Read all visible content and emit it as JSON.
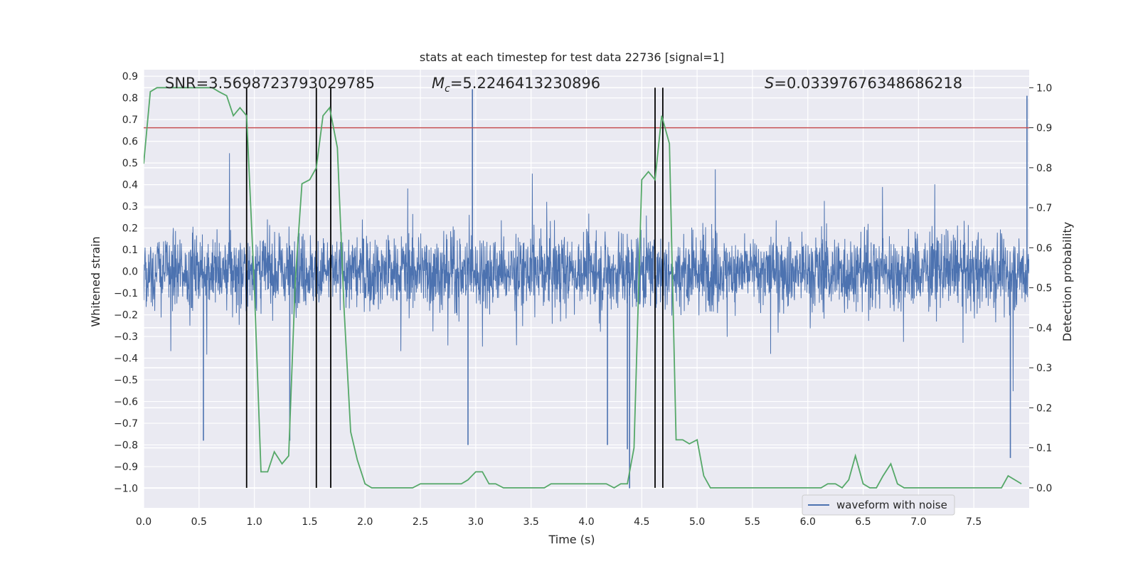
{
  "chart_data": {
    "type": "line",
    "title": "stats at each timestep for test data 22736 [signal=1]",
    "xlabel": "Time (s)",
    "ylabel": "Whitened strain",
    "y2label": "Detection probability",
    "xlim": [
      0.0,
      8.0
    ],
    "ylim": [
      -1.09,
      0.93
    ],
    "y2lim": [
      -0.05,
      1.045
    ],
    "xticks": [
      "0.0",
      "0.5",
      "1.0",
      "1.5",
      "2.0",
      "2.5",
      "3.0",
      "3.5",
      "4.0",
      "4.5",
      "5.0",
      "5.5",
      "6.0",
      "6.5",
      "7.0",
      "7.5"
    ],
    "yticks": [
      "0.9",
      "0.8",
      "0.7",
      "0.6",
      "0.5",
      "0.4",
      "0.3",
      "0.2",
      "0.1",
      "0.0",
      "-0.1",
      "-0.2",
      "-0.3",
      "-0.4",
      "-0.5",
      "-0.6",
      "-0.7",
      "-0.8",
      "-0.9",
      "-1.0"
    ],
    "y2ticks": [
      "1.0",
      "0.9",
      "0.8",
      "0.7",
      "0.6",
      "0.5",
      "0.4",
      "0.3",
      "0.2",
      "0.1",
      "0.0"
    ],
    "annotations": {
      "snr": "SNR=3.5698723793029785",
      "mc_symbol": "M",
      "mc_sub": "c",
      "mc_value": "=5.2246413230896",
      "s_symbol": "S",
      "s_value": "=0.03397676348686218"
    },
    "threshold": 0.9,
    "vertical_lines": [
      0.93,
      1.56,
      1.69,
      4.62,
      4.69
    ],
    "legend": {
      "label": "waveform with noise",
      "placement": "lower-right"
    },
    "series": [
      {
        "name": "waveform with noise",
        "axis": "left",
        "style": "dense-noise",
        "amplitude_rms": 0.15,
        "highlight_peaks": [
          {
            "t": 2.97,
            "v": 0.84
          },
          {
            "t": 7.98,
            "v": 0.81
          },
          {
            "t": 4.39,
            "v": -1.0
          },
          {
            "t": 0.54,
            "v": -0.78
          },
          {
            "t": 1.32,
            "v": -0.78
          },
          {
            "t": 7.83,
            "v": -0.86
          },
          {
            "t": 2.93,
            "v": -0.8
          },
          {
            "t": 4.19,
            "v": -0.8
          },
          {
            "t": 4.37,
            "v": -0.82
          }
        ]
      },
      {
        "name": "Detection probability",
        "axis": "right",
        "x": [
          0.0,
          0.06,
          0.12,
          0.18,
          0.25,
          0.31,
          0.37,
          0.43,
          0.5,
          0.56,
          0.62,
          0.68,
          0.75,
          0.81,
          0.87,
          0.93,
          1.0,
          1.06,
          1.12,
          1.18,
          1.25,
          1.31,
          1.37,
          1.43,
          1.5,
          1.56,
          1.62,
          1.68,
          1.75,
          1.81,
          1.87,
          1.93,
          2.0,
          2.06,
          2.12,
          2.18,
          2.25,
          2.31,
          2.37,
          2.43,
          2.5,
          2.56,
          2.62,
          2.68,
          2.75,
          2.81,
          2.87,
          2.93,
          3.0,
          3.06,
          3.12,
          3.18,
          3.25,
          3.31,
          3.37,
          3.43,
          3.5,
          3.56,
          3.62,
          3.68,
          3.75,
          3.81,
          3.87,
          3.93,
          4.0,
          4.06,
          4.12,
          4.18,
          4.25,
          4.31,
          4.37,
          4.43,
          4.5,
          4.56,
          4.62,
          4.68,
          4.75,
          4.81,
          4.87,
          4.93,
          5.0,
          5.06,
          5.12,
          5.18,
          5.25,
          5.31,
          5.37,
          5.43,
          5.5,
          5.56,
          5.62,
          5.68,
          5.75,
          5.81,
          5.87,
          5.93,
          6.0,
          6.06,
          6.12,
          6.18,
          6.25,
          6.31,
          6.37,
          6.43,
          6.5,
          6.56,
          6.62,
          6.68,
          6.75,
          6.81,
          6.87,
          6.93,
          7.0,
          7.06,
          7.12,
          7.18,
          7.25,
          7.31,
          7.37,
          7.43,
          7.5,
          7.56,
          7.62,
          7.68,
          7.75,
          7.81,
          7.87,
          7.93
        ],
        "values": [
          0.81,
          0.99,
          1.0,
          1.0,
          1.0,
          1.0,
          1.0,
          1.0,
          1.0,
          1.0,
          1.0,
          0.99,
          0.98,
          0.93,
          0.95,
          0.93,
          0.5,
          0.04,
          0.04,
          0.09,
          0.06,
          0.08,
          0.52,
          0.76,
          0.77,
          0.8,
          0.93,
          0.95,
          0.85,
          0.45,
          0.14,
          0.07,
          0.01,
          0.0,
          0.0,
          0.0,
          0.0,
          0.0,
          0.0,
          0.0,
          0.01,
          0.01,
          0.01,
          0.01,
          0.01,
          0.01,
          0.01,
          0.02,
          0.04,
          0.04,
          0.01,
          0.01,
          0.0,
          0.0,
          0.0,
          0.0,
          0.0,
          0.0,
          0.0,
          0.01,
          0.01,
          0.01,
          0.01,
          0.01,
          0.01,
          0.01,
          0.01,
          0.01,
          0.0,
          0.01,
          0.01,
          0.1,
          0.77,
          0.79,
          0.77,
          0.93,
          0.86,
          0.12,
          0.12,
          0.11,
          0.12,
          0.03,
          0.0,
          0.0,
          0.0,
          0.0,
          0.0,
          0.0,
          0.0,
          0.0,
          0.0,
          0.0,
          0.0,
          0.0,
          0.0,
          0.0,
          0.0,
          0.0,
          0.0,
          0.01,
          0.01,
          0.0,
          0.02,
          0.08,
          0.01,
          0.0,
          0.0,
          0.03,
          0.06,
          0.01,
          0.0,
          0.0,
          0.0,
          0.0,
          0.0,
          0.0,
          0.0,
          0.0,
          0.0,
          0.0,
          0.0,
          0.0,
          0.0,
          0.0,
          0.0,
          0.03,
          0.02,
          0.01
        ]
      }
    ],
    "colors": {
      "background": "#eaeaf2",
      "grid": "#ffffff",
      "waveform": "#4c72b0",
      "probability": "#55a868",
      "threshold": "#c44e52",
      "vlines": "#000000"
    }
  }
}
